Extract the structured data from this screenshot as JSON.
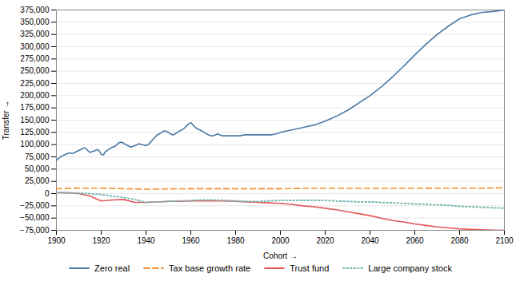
{
  "chart_data": {
    "type": "line",
    "xlabel": "Cohort",
    "ylabel": "Transfer",
    "xlim": [
      1900,
      2100
    ],
    "ylim": [
      -75000,
      375000
    ],
    "xticks": [
      1900,
      1920,
      1940,
      1960,
      1980,
      2000,
      2020,
      2040,
      2060,
      2080,
      2100
    ],
    "yticks": [
      {
        "value": -75000,
        "label": "−75,000"
      },
      {
        "value": -50000,
        "label": "−50,000"
      },
      {
        "value": -25000,
        "label": "−25,000"
      },
      0,
      {
        "value": 25000,
        "label": "25,000"
      },
      {
        "value": 50000,
        "label": "50,000"
      },
      {
        "value": 75000,
        "label": "75,000"
      },
      {
        "value": 100000,
        "label": "100,000"
      },
      {
        "value": 125000,
        "label": "125,000"
      },
      {
        "value": 150000,
        "label": "150,000"
      },
      {
        "value": 175000,
        "label": "175,000"
      },
      {
        "value": 200000,
        "label": "200,000"
      },
      {
        "value": 225000,
        "label": "225,000"
      },
      {
        "value": 250000,
        "label": "250,000"
      },
      {
        "value": 275000,
        "label": "275,000"
      },
      {
        "value": 300000,
        "label": "300,000"
      },
      {
        "value": 325000,
        "label": "325,000"
      },
      {
        "value": 350000,
        "label": "350,000"
      },
      {
        "value": 375000,
        "label": "375,000"
      }
    ],
    "grid": true,
    "legend": "bottom",
    "series": [
      {
        "name": "Zero real",
        "line_style": "solid",
        "x": [
          1900,
          1901,
          1902,
          1903,
          1904,
          1905,
          1906,
          1907,
          1908,
          1909,
          1910,
          1911,
          1912,
          1913,
          1914,
          1915,
          1916,
          1917,
          1918,
          1919,
          1920,
          1921,
          1922,
          1923,
          1924,
          1925,
          1926,
          1927,
          1928,
          1929,
          1930,
          1931,
          1932,
          1933,
          1934,
          1935,
          1936,
          1937,
          1938,
          1939,
          1940,
          1941,
          1942,
          1943,
          1944,
          1945,
          1946,
          1947,
          1948,
          1949,
          1950,
          1951,
          1952,
          1953,
          1954,
          1955,
          1956,
          1957,
          1958,
          1959,
          1960,
          1961,
          1962,
          1963,
          1964,
          1965,
          1966,
          1967,
          1968,
          1969,
          1970,
          1971,
          1972,
          1973,
          1974,
          1975,
          1976,
          1977,
          1978,
          1979,
          1980,
          1981,
          1982,
          1983,
          1984,
          1985,
          1986,
          1987,
          1988,
          1989,
          1990,
          1991,
          1992,
          1993,
          1994,
          1995,
          1996,
          1997,
          1998,
          1999,
          2000,
          2005,
          2010,
          2015,
          2020,
          2025,
          2030,
          2035,
          2040,
          2045,
          2050,
          2055,
          2060,
          2065,
          2070,
          2075,
          2080,
          2085,
          2090,
          2095,
          2100
        ],
        "values": [
          68000,
          72000,
          75000,
          78000,
          80000,
          82000,
          83000,
          82000,
          83000,
          86000,
          88000,
          90000,
          93000,
          93000,
          88000,
          84000,
          86000,
          87000,
          90000,
          88000,
          80000,
          79000,
          86000,
          89000,
          92000,
          95000,
          96000,
          100000,
          104000,
          105000,
          103000,
          100000,
          98000,
          95000,
          96000,
          98000,
          100000,
          102000,
          100000,
          99000,
          98000,
          100000,
          105000,
          110000,
          115000,
          120000,
          122000,
          125000,
          128000,
          127000,
          125000,
          122000,
          120000,
          122000,
          125000,
          128000,
          130000,
          133000,
          138000,
          142000,
          145000,
          140000,
          135000,
          132000,
          130000,
          128000,
          125000,
          122000,
          120000,
          118000,
          118000,
          120000,
          122000,
          120000,
          118000,
          118000,
          118000,
          118000,
          118000,
          118000,
          118000,
          118000,
          118000,
          119000,
          120000,
          120000,
          120000,
          120000,
          120000,
          120000,
          120000,
          120000,
          120000,
          120000,
          120000,
          120000,
          120000,
          121000,
          122000,
          123000,
          125000,
          130000,
          135000,
          140000,
          148000,
          158000,
          170000,
          185000,
          200000,
          218000,
          238000,
          260000,
          283000,
          305000,
          325000,
          342000,
          357000,
          365000,
          370000,
          372000,
          375000
        ]
      },
      {
        "name": "Tax base growth rate",
        "line_style": "dashed",
        "x": [
          1900,
          1910,
          1920,
          1930,
          1940,
          1950,
          1960,
          1970,
          1980,
          1990,
          2000,
          2010,
          2020,
          2030,
          2040,
          2050,
          2060,
          2070,
          2080,
          2090,
          2100
        ],
        "values": [
          10000,
          11000,
          11000,
          10000,
          9000,
          9500,
          10000,
          10000,
          10000,
          10000,
          10000,
          10500,
          10500,
          10500,
          10500,
          10500,
          10500,
          11000,
          11000,
          11000,
          12000
        ]
      },
      {
        "name": "Trust fund",
        "line_style": "solid",
        "x": [
          1900,
          1905,
          1910,
          1915,
          1920,
          1925,
          1930,
          1935,
          1940,
          1945,
          1950,
          1955,
          1960,
          1965,
          1970,
          1975,
          1980,
          1985,
          1990,
          1995,
          2000,
          2005,
          2010,
          2015,
          2020,
          2025,
          2030,
          2035,
          2040,
          2045,
          2050,
          2055,
          2060,
          2065,
          2070,
          2075,
          2080,
          2085,
          2090,
          2095,
          2100
        ],
        "values": [
          2000,
          1500,
          0,
          -5000,
          -15000,
          -13000,
          -12000,
          -18000,
          -18000,
          -17000,
          -16000,
          -16000,
          -15000,
          -15000,
          -15000,
          -15000,
          -16000,
          -17000,
          -18000,
          -19000,
          -20000,
          -22000,
          -25000,
          -27000,
          -30000,
          -33000,
          -37000,
          -41000,
          -45000,
          -50000,
          -55000,
          -58000,
          -62000,
          -65000,
          -68000,
          -70000,
          -72000,
          -73000,
          -74000,
          -74500,
          -75000
        ]
      },
      {
        "name": "Large company stock",
        "line_style": "dotted",
        "x": [
          1900,
          1905,
          1910,
          1915,
          1920,
          1925,
          1930,
          1935,
          1940,
          1945,
          1950,
          1955,
          1960,
          1965,
          1970,
          1975,
          1980,
          1985,
          1990,
          1995,
          2000,
          2005,
          2010,
          2015,
          2020,
          2025,
          2030,
          2035,
          2040,
          2045,
          2050,
          2055,
          2060,
          2065,
          2070,
          2075,
          2080,
          2085,
          2090,
          2095,
          2100
        ],
        "values": [
          2000,
          1500,
          1000,
          0,
          -2000,
          -5000,
          -8000,
          -12000,
          -18000,
          -17000,
          -16000,
          -15000,
          -14000,
          -13000,
          -13000,
          -14000,
          -15000,
          -16000,
          -16000,
          -15000,
          -14000,
          -14000,
          -14000,
          -14000,
          -14000,
          -15000,
          -16000,
          -17000,
          -17000,
          -18000,
          -19000,
          -20000,
          -21000,
          -22000,
          -23000,
          -24000,
          -26000,
          -27000,
          -28000,
          -29000,
          -30000
        ]
      }
    ]
  }
}
